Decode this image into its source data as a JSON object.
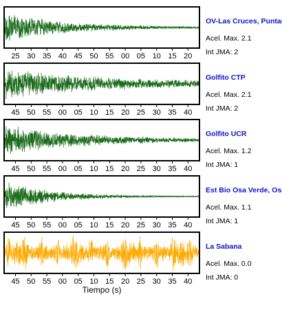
{
  "chart_data": {
    "type": "line",
    "xlabel": "Tiempo (s)",
    "colors": {
      "trace_default": "#1a6b1a",
      "trace_highlight": "#ffaa00",
      "station_name": "#1111cc"
    },
    "panels": [
      {
        "name": "OV-Las Cruces, Puntar",
        "acel_text": "Acel. Max. 2.1",
        "jma_text": "Int JMA: 2",
        "acel_max": 2.1,
        "int_jma": 2,
        "color": "#1a6b1a",
        "envelope": "decay",
        "decay_rate": 3.2,
        "base_amp": 0.82,
        "tail_amp": 0.03,
        "ticks": [
          "25",
          "30",
          "35",
          "40",
          "45",
          "50",
          "55",
          "00",
          "05",
          "10",
          "15",
          "20"
        ]
      },
      {
        "name": "Golfito CTP",
        "acel_text": "Acel. Max. 2.1",
        "jma_text": "Int JMA: 2",
        "acel_max": 2.1,
        "int_jma": 2,
        "color": "#1a6b1a",
        "envelope": "decay",
        "decay_rate": 2.2,
        "base_amp": 0.75,
        "tail_amp": 0.12,
        "ticks": [
          "45",
          "50",
          "55",
          "00",
          "05",
          "10",
          "15",
          "20",
          "25",
          "30",
          "35",
          "40"
        ]
      },
      {
        "name": "Golfito UCR",
        "acel_text": "Acel. Max. 1.2",
        "jma_text": "Int JMA: 1",
        "acel_max": 1.2,
        "int_jma": 1,
        "color": "#1a6b1a",
        "envelope": "decay",
        "decay_rate": 2.6,
        "base_amp": 0.8,
        "tail_amp": 0.06,
        "ticks": [
          "45",
          "50",
          "55",
          "00",
          "05",
          "10",
          "15",
          "20",
          "25",
          "30",
          "35",
          "40"
        ]
      },
      {
        "name": "Est Bio Osa Verde, Osa",
        "acel_text": "Acel. Max. 1.1",
        "jma_text": "Int JMA: 1",
        "acel_max": 1.1,
        "int_jma": 1,
        "color": "#1a6b1a",
        "envelope": "decay",
        "decay_rate": 4.0,
        "base_amp": 0.8,
        "tail_amp": 0.02,
        "ticks": [
          "45",
          "50",
          "55",
          "00",
          "05",
          "10",
          "15",
          "20",
          "25",
          "30",
          "35",
          "40"
        ]
      },
      {
        "name": "La Sabana",
        "acel_text": "Acel. Max. 0.0",
        "jma_text": "Int JMA: 0",
        "acel_max": 0.0,
        "int_jma": 0,
        "color": "#ffaa00",
        "envelope": "noise",
        "decay_rate": 0,
        "base_amp": 0.45,
        "tail_amp": 0.45,
        "ticks": [
          "45",
          "50",
          "55",
          "00",
          "05",
          "10",
          "15",
          "20",
          "25",
          "30",
          "35",
          "40"
        ]
      }
    ]
  }
}
